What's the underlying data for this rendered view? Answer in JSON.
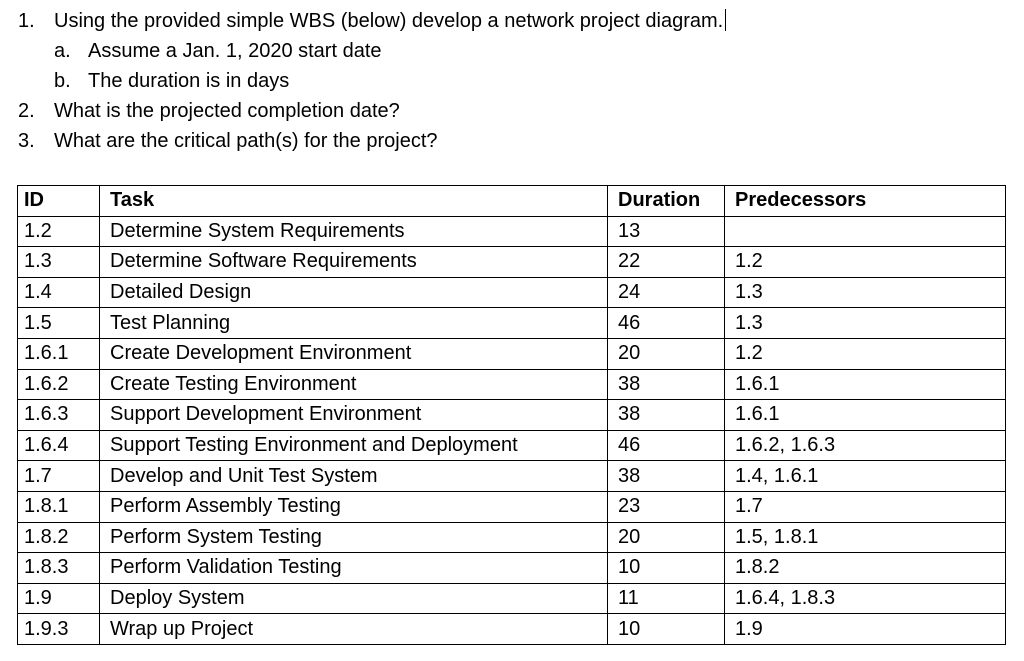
{
  "questions": [
    {
      "num": "1.",
      "text": "Using the provided simple WBS (below) develop a network project diagram.",
      "subs": [
        {
          "letter": "a.",
          "text": "Assume a Jan. 1, 2020 start date"
        },
        {
          "letter": "b.",
          "text": "The duration is in days"
        }
      ]
    },
    {
      "num": "2.",
      "text": "What is the projected completion date?"
    },
    {
      "num": "3.",
      "text": "What are the critical path(s) for the project?"
    }
  ],
  "table": {
    "headers": {
      "id": "ID",
      "task": "Task",
      "duration": "Duration",
      "predecessors": "Predecessors"
    },
    "rows": [
      {
        "id": "1.2",
        "task": "Determine System Requirements",
        "duration": "13",
        "predecessors": ""
      },
      {
        "id": "1.3",
        "task": "Determine Software Requirements",
        "duration": "22",
        "predecessors": "1.2"
      },
      {
        "id": "1.4",
        "task": "Detailed Design",
        "duration": "24",
        "predecessors": "1.3"
      },
      {
        "id": "1.5",
        "task": "Test Planning",
        "duration": "46",
        "predecessors": "1.3"
      },
      {
        "id": "1.6.1",
        "task": "Create Development Environment",
        "duration": "20",
        "predecessors": "1.2"
      },
      {
        "id": "1.6.2",
        "task": "Create Testing Environment",
        "duration": "38",
        "predecessors": "1.6.1"
      },
      {
        "id": "1.6.3",
        "task": "Support Development Environment",
        "duration": "38",
        "predecessors": "1.6.1"
      },
      {
        "id": "1.6.4",
        "task": "Support Testing Environment and Deployment",
        "duration": "46",
        "predecessors": "1.6.2, 1.6.3"
      },
      {
        "id": "1.7",
        "task": "Develop and Unit Test System",
        "duration": "38",
        "predecessors": "1.4, 1.6.1"
      },
      {
        "id": "1.8.1",
        "task": "Perform Assembly Testing",
        "duration": "23",
        "predecessors": "1.7"
      },
      {
        "id": "1.8.2",
        "task": "Perform System Testing",
        "duration": "20",
        "predecessors": "1.5, 1.8.1"
      },
      {
        "id": "1.8.3",
        "task": "Perform Validation Testing",
        "duration": "10",
        "predecessors": "1.8.2"
      },
      {
        "id": "1.9",
        "task": "Deploy System",
        "duration": "11",
        "predecessors": "1.6.4, 1.8.3"
      },
      {
        "id": "1.9.3",
        "task": "Wrap up Project",
        "duration": "10",
        "predecessors": "1.9"
      }
    ]
  }
}
